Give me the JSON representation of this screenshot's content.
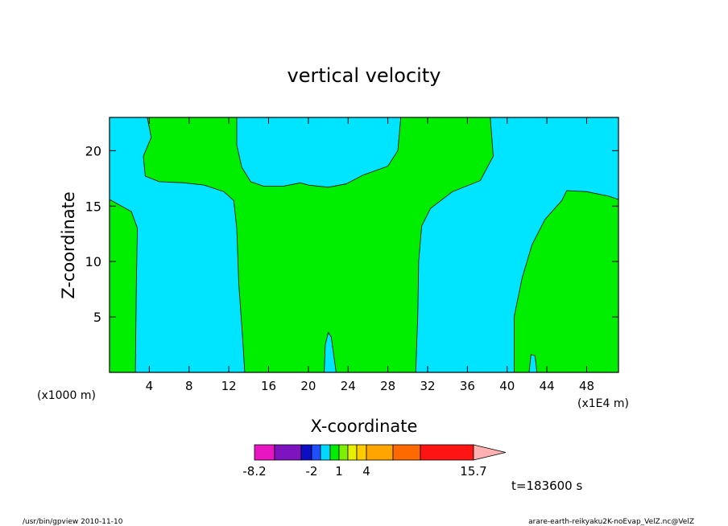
{
  "chart_data": {
    "type": "contour",
    "title": "vertical velocity",
    "xlabel": "X-coordinate",
    "ylabel": "Z-coordinate",
    "x_units_left": "(x1000 m)",
    "x_units_right": "(x1E4 m)",
    "x_ticks": [
      "4",
      "8",
      "12",
      "16",
      "20",
      "24",
      "28",
      "32",
      "36",
      "40",
      "44",
      "48"
    ],
    "y_ticks": [
      "5",
      "10",
      "15",
      "20"
    ],
    "xlim": [
      0,
      51.2
    ],
    "ylim": [
      0,
      23
    ],
    "colors": {
      "positive": "#00ee00",
      "negative": "#00e5ff"
    },
    "positive_regions": [
      {
        "name": "left-edge",
        "points": [
          [
            0,
            0
          ],
          [
            0,
            15.6
          ],
          [
            0.8,
            15.2
          ],
          [
            2.2,
            14.5
          ],
          [
            2.8,
            13.0
          ],
          [
            2.7,
            8.0
          ],
          [
            2.6,
            0
          ]
        ]
      },
      {
        "name": "central-band",
        "points": [
          [
            3.8,
            23
          ],
          [
            4.2,
            21.2
          ],
          [
            3.4,
            19.5
          ],
          [
            3.6,
            17.7
          ],
          [
            5.0,
            17.2
          ],
          [
            7.5,
            17.1
          ],
          [
            9.5,
            16.9
          ],
          [
            11.5,
            16.3
          ],
          [
            12.5,
            15.5
          ],
          [
            12.8,
            13.0
          ],
          [
            13.0,
            8.0
          ],
          [
            13.4,
            3.0
          ],
          [
            13.6,
            0
          ],
          [
            21.6,
            0
          ],
          [
            21.7,
            2.5
          ],
          [
            22.0,
            3.6
          ],
          [
            22.3,
            3.2
          ],
          [
            22.8,
            0
          ],
          [
            30.8,
            0
          ],
          [
            31.0,
            5.0
          ],
          [
            31.1,
            10.0
          ],
          [
            31.4,
            13.2
          ],
          [
            32.3,
            14.8
          ],
          [
            34.5,
            16.3
          ],
          [
            37.3,
            17.3
          ],
          [
            38.6,
            19.5
          ],
          [
            38.3,
            23
          ],
          [
            29.3,
            23
          ],
          [
            29.0,
            20.0
          ],
          [
            28.0,
            18.6
          ],
          [
            25.5,
            17.8
          ],
          [
            23.8,
            17.0
          ],
          [
            22.0,
            16.7
          ],
          [
            20.0,
            16.9
          ],
          [
            19.2,
            17.1
          ],
          [
            17.5,
            16.8
          ],
          [
            15.5,
            16.8
          ],
          [
            14.2,
            17.2
          ],
          [
            13.3,
            18.5
          ],
          [
            12.8,
            20.5
          ],
          [
            12.8,
            23
          ]
        ]
      },
      {
        "name": "right-lower",
        "points": [
          [
            40.7,
            0
          ],
          [
            40.7,
            5.0
          ],
          [
            41.5,
            8.5
          ],
          [
            42.5,
            11.5
          ],
          [
            43.8,
            13.8
          ],
          [
            45.5,
            15.5
          ],
          [
            46.0,
            16.4
          ],
          [
            48.0,
            16.3
          ],
          [
            50.2,
            15.9
          ],
          [
            51.2,
            15.6
          ],
          [
            51.2,
            0
          ],
          [
            43.0,
            0
          ],
          [
            42.8,
            1.5
          ],
          [
            42.4,
            1.6
          ],
          [
            42.2,
            0
          ]
        ]
      }
    ],
    "colorbar": {
      "colors": [
        "#e816c0",
        "#7d14c0",
        "#0c0ec4",
        "#1f50ff",
        "#00d8ff",
        "#00ee00",
        "#7cf000",
        "#e6f000",
        "#ffcc00",
        "#ffa500",
        "#ff6a00",
        "#ff1414",
        "#ff8080",
        "#ffb0b0"
      ],
      "labels": [
        "-8.2",
        "-2",
        "1",
        "4",
        "15.7"
      ]
    },
    "time_label": "t=183600 s"
  },
  "footer": {
    "left": "/usr/bin/gpview   2010-11-10",
    "right": "arare-earth-reikyaku2K-noEvap_VelZ.nc@VelZ"
  }
}
